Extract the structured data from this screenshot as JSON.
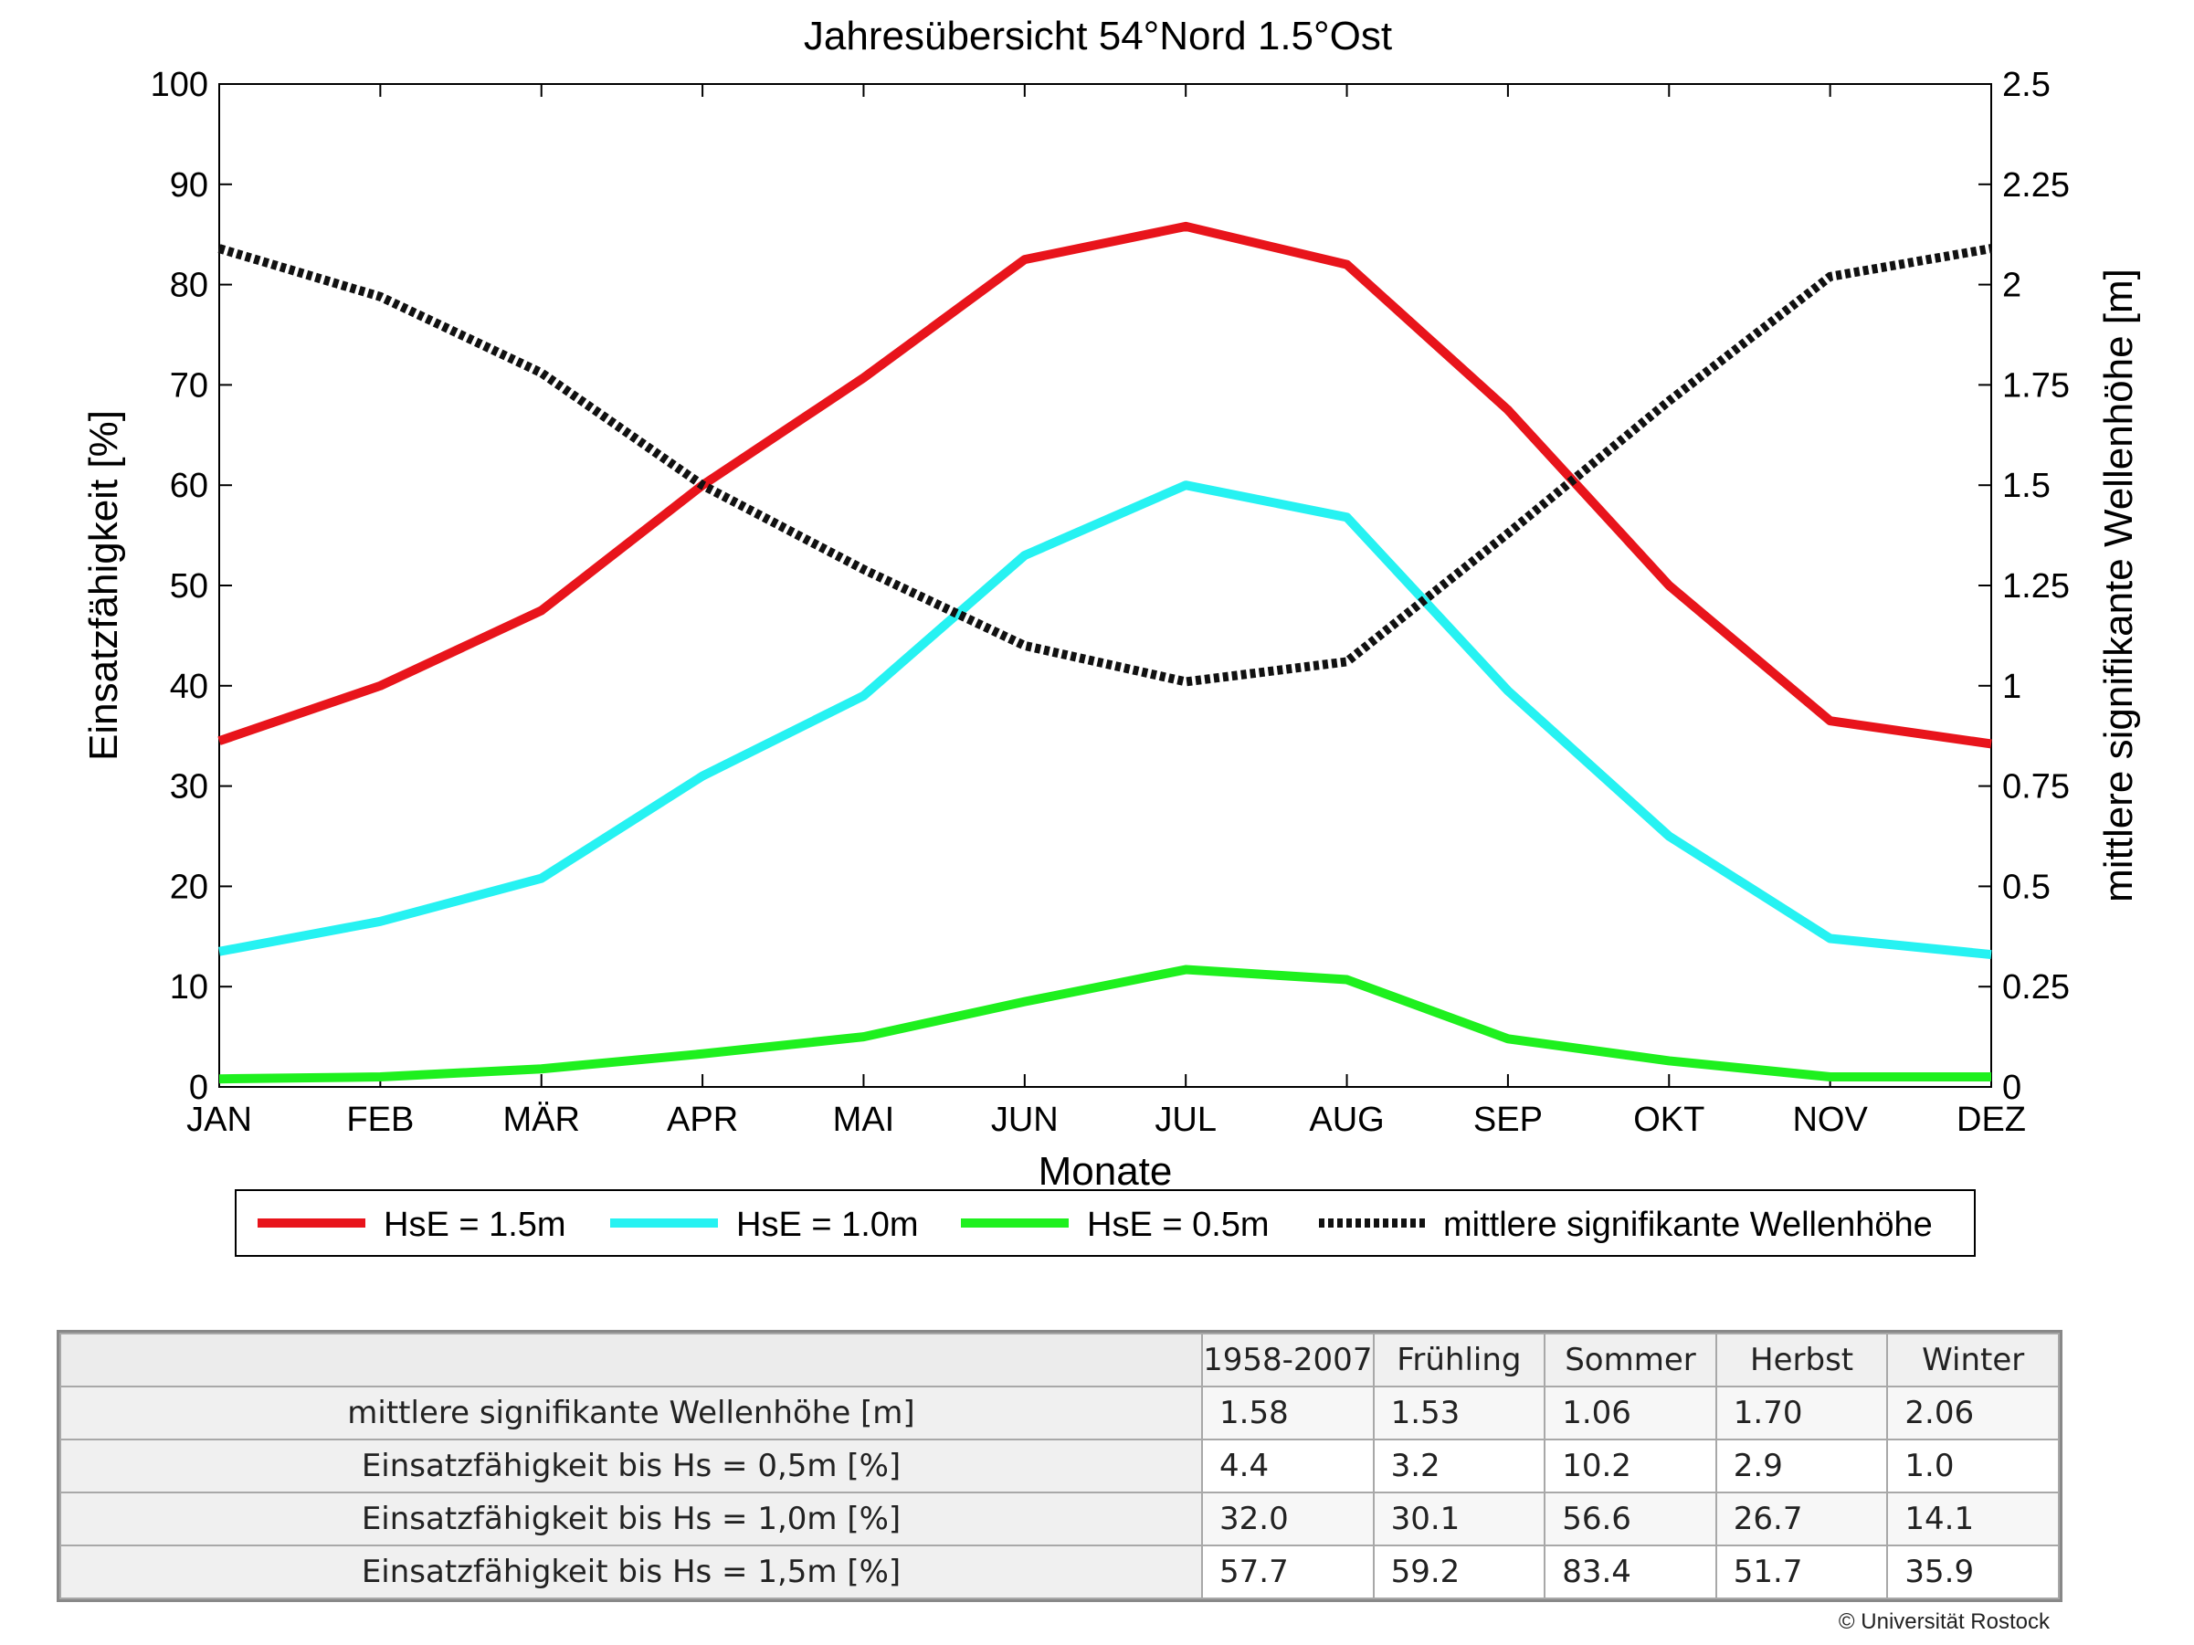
{
  "chart_data": {
    "type": "line",
    "title": "Jahresübersicht  54°Nord  1.5°Ost",
    "xlabel": "Monate",
    "ylabel": "Einsatzfähigkeit [%]",
    "y2label": "mittlere signifikante Wellenhöhe [m]",
    "categories": [
      "JAN",
      "FEB",
      "MÄR",
      "APR",
      "MAI",
      "JUN",
      "JUL",
      "AUG",
      "SEP",
      "OKT",
      "NOV",
      "DEZ"
    ],
    "ylim": [
      0,
      100
    ],
    "yticks": [
      "0",
      "10",
      "20",
      "30",
      "40",
      "50",
      "60",
      "70",
      "80",
      "90",
      "100"
    ],
    "y2lim": [
      0,
      2.5
    ],
    "y2ticks": [
      "0",
      "0.25",
      "0.5",
      "0.75",
      "1",
      "1.25",
      "1.5",
      "1.75",
      "2",
      "2.25",
      "2.5"
    ],
    "grid": false,
    "legend_position": "bottom",
    "series": [
      {
        "name": "HsE = 1.5m",
        "axis": "left",
        "color": "#e8141b",
        "style": "solid",
        "values": [
          34.5,
          40.0,
          47.5,
          60.0,
          70.7,
          82.5,
          85.8,
          82.0,
          67.5,
          50.0,
          36.5,
          34.2
        ]
      },
      {
        "name": "HsE = 1.0m",
        "axis": "left",
        "color": "#26f2f2",
        "style": "solid",
        "values": [
          13.5,
          16.5,
          20.8,
          31.0,
          39.0,
          53.0,
          60.0,
          56.8,
          39.5,
          25.0,
          14.8,
          13.2
        ]
      },
      {
        "name": "HsE = 0.5m",
        "axis": "left",
        "color": "#1ef01e",
        "style": "solid",
        "values": [
          0.8,
          1.0,
          1.8,
          3.3,
          5.0,
          8.5,
          11.7,
          10.7,
          4.8,
          2.6,
          1.0,
          1.0
        ]
      },
      {
        "name": "mittlere signifikante Wellenhöhe",
        "axis": "right",
        "color": "#111111",
        "style": "dotted",
        "values": [
          2.09,
          1.97,
          1.78,
          1.5,
          1.29,
          1.1,
          1.01,
          1.06,
          1.38,
          1.71,
          2.02,
          2.09
        ]
      }
    ]
  },
  "table": {
    "headers": [
      "",
      "1958-2007",
      "Frühling",
      "Sommer",
      "Herbst",
      "Winter"
    ],
    "rows": [
      {
        "label": "mittlere signifikante Wellenhöhe [m]",
        "values": [
          "1.58",
          "1.53",
          "1.06",
          "1.70",
          "2.06"
        ]
      },
      {
        "label": "Einsatzfähigkeit bis Hs = 0,5m [%]",
        "values": [
          "4.4",
          "3.2",
          "10.2",
          "2.9",
          "1.0"
        ]
      },
      {
        "label": "Einsatzfähigkeit bis Hs = 1,0m [%]",
        "values": [
          "32.0",
          "30.1",
          "56.6",
          "26.7",
          "14.1"
        ]
      },
      {
        "label": "Einsatzfähigkeit bis Hs = 1,5m [%]",
        "values": [
          "57.7",
          "59.2",
          "83.4",
          "51.7",
          "35.9"
        ]
      }
    ]
  },
  "credit": "© Universität Rostock"
}
